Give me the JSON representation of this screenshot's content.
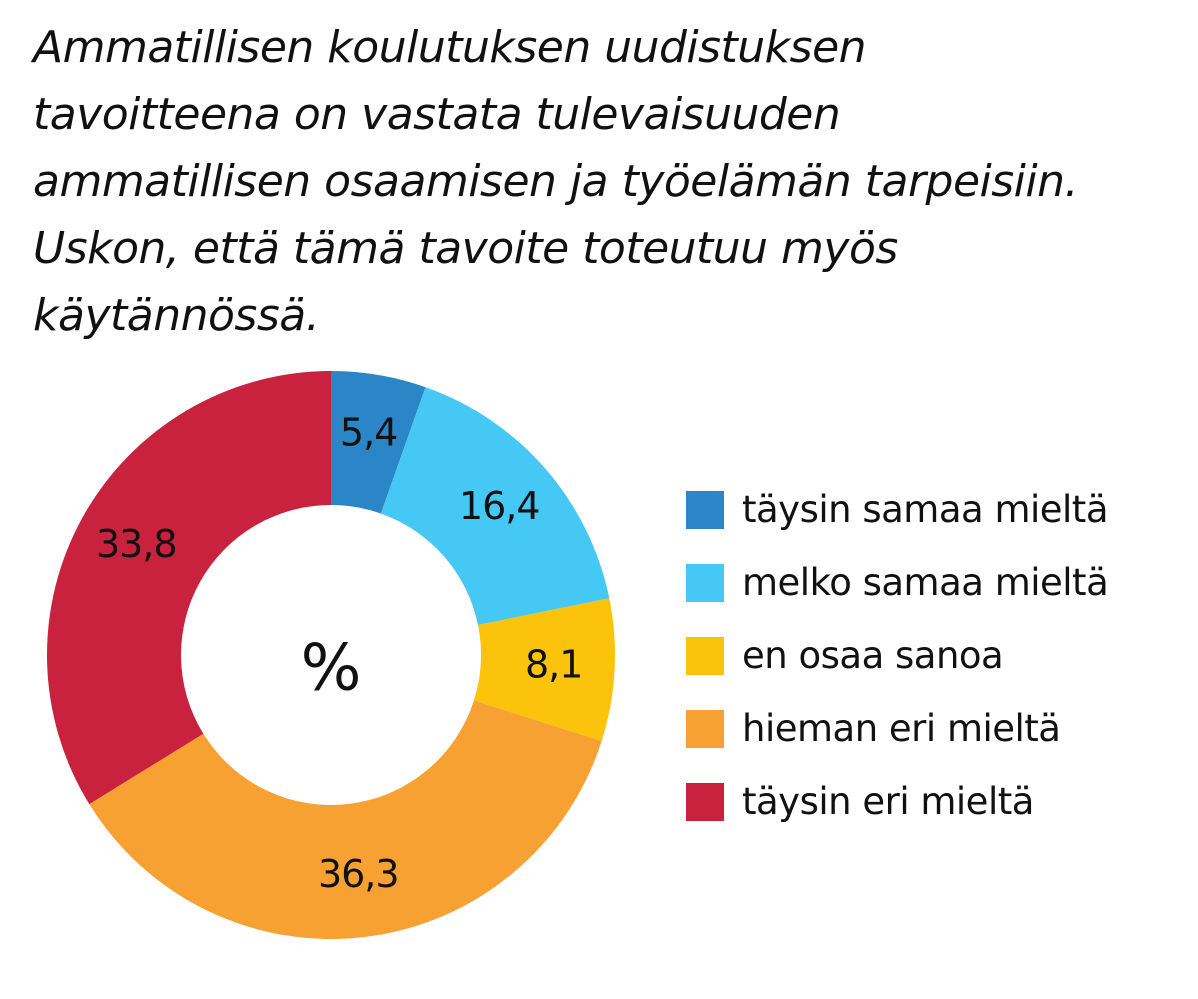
{
  "chart_data": {
    "type": "pie",
    "style": "donut",
    "title": "Ammatillisen koulutuksen uudistuksen tavoitteena on vastata tulevaisuuden ammatillisen osaamisen ja työelämän tarpeisiin. Uskon, että tämä tavoite toteutuu myös käytännössä.",
    "title_lines": [
      "Ammatillisen koulutuksen uudistuksen",
      "tavoitteena on vastata tulevaisuuden",
      "ammatillisen osaamisen ja työelämän tarpeisiin.",
      "Uskon, että tämä tavoite toteutuu myös",
      "käytännössä."
    ],
    "center_label": "%",
    "unit": "%",
    "legend_position": "right",
    "slices": [
      {
        "label": "täysin samaa mieltä",
        "value": 5.4,
        "display": "5,4",
        "color": "#2b86c8"
      },
      {
        "label": "melko samaa mieltä",
        "value": 16.4,
        "display": "16,4",
        "color": "#46c8f5"
      },
      {
        "label": "en osaa sanoa",
        "value": 8.1,
        "display": "8,1",
        "color": "#fcc30c"
      },
      {
        "label": "hieman eri mieltä",
        "value": 36.3,
        "display": "36,3",
        "color": "#f7a132"
      },
      {
        "label": "täysin eri mieltä",
        "value": 33.8,
        "display": "33,8",
        "color": "#c8223e"
      }
    ]
  }
}
